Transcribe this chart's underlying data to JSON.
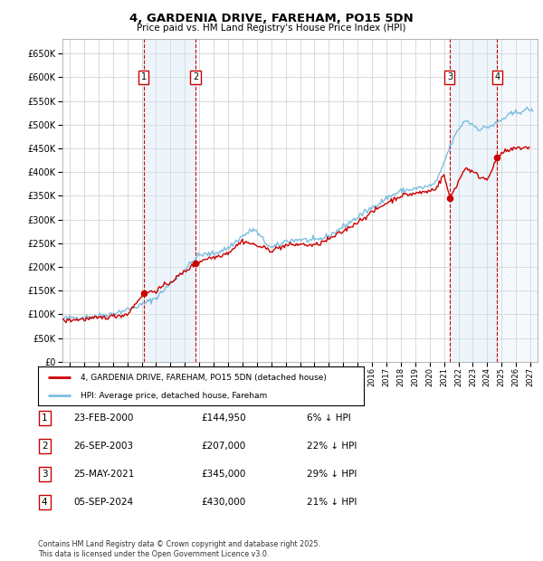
{
  "title": "4, GARDENIA DRIVE, FAREHAM, PO15 5DN",
  "subtitle": "Price paid vs. HM Land Registry's House Price Index (HPI)",
  "hpi_color": "#7bbde0",
  "price_color": "#cc0000",
  "background_color": "#ffffff",
  "grid_color": "#cccccc",
  "ylim": [
    0,
    680000
  ],
  "yticks": [
    0,
    50000,
    100000,
    150000,
    200000,
    250000,
    300000,
    350000,
    400000,
    450000,
    500000,
    550000,
    600000,
    650000
  ],
  "xlim_start": 1994.5,
  "xlim_end": 2027.5,
  "transactions": [
    {
      "num": 1,
      "date": "23-FEB-2000",
      "price": 144950,
      "pct": "6%",
      "year": 2000.13
    },
    {
      "num": 2,
      "date": "26-SEP-2003",
      "price": 207000,
      "pct": "22%",
      "year": 2003.74
    },
    {
      "num": 3,
      "date": "25-MAY-2021",
      "price": 345000,
      "pct": "29%",
      "year": 2021.4
    },
    {
      "num": 4,
      "date": "05-SEP-2024",
      "price": 430000,
      "pct": "21%",
      "year": 2024.68
    }
  ],
  "legend_label_price": "4, GARDENIA DRIVE, FAREHAM, PO15 5DN (detached house)",
  "legend_label_hpi": "HPI: Average price, detached house, Fareham",
  "footnote": "Contains HM Land Registry data © Crown copyright and database right 2025.\nThis data is licensed under the Open Government Licence v3.0.",
  "table_rows": [
    {
      "num": 1,
      "date": "23-FEB-2000",
      "price": "£144,950",
      "pct": "6% ↓ HPI"
    },
    {
      "num": 2,
      "date": "26-SEP-2003",
      "price": "£207,000",
      "pct": "22% ↓ HPI"
    },
    {
      "num": 3,
      "date": "25-MAY-2021",
      "price": "£345,000",
      "pct": "29% ↓ HPI"
    },
    {
      "num": 4,
      "date": "05-SEP-2024",
      "price": "£430,000",
      "pct": "21% ↓ HPI"
    }
  ]
}
